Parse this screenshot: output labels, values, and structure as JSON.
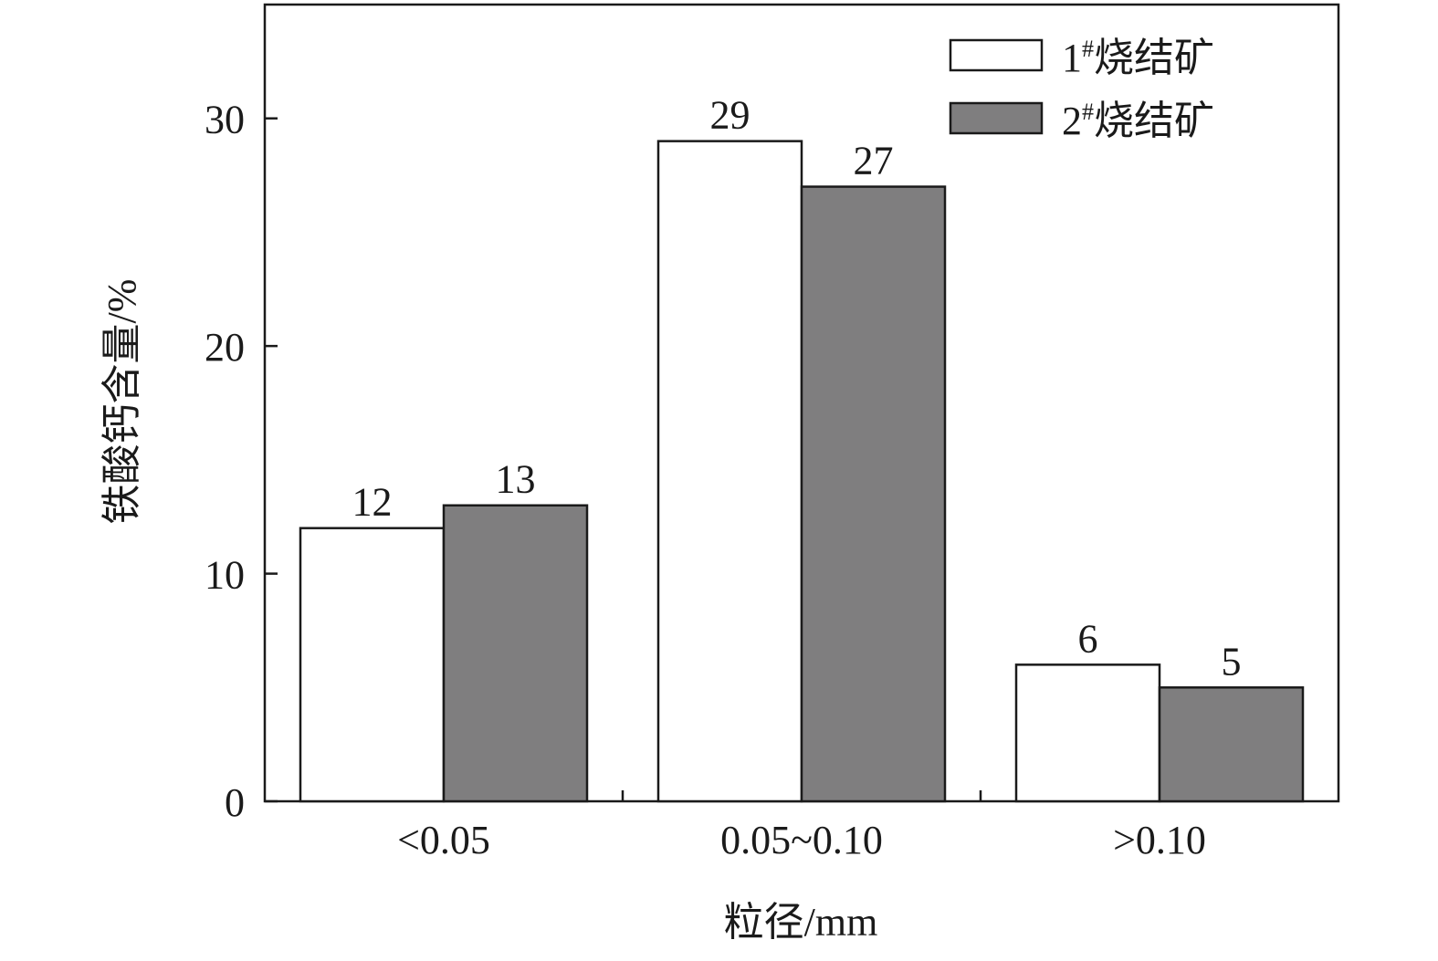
{
  "chart_data": {
    "type": "bar",
    "categories": [
      "<0.05",
      "0.05~0.10",
      ">0.10"
    ],
    "series": [
      {
        "name": "1",
        "name_sup": "#",
        "name_suffix": "烧结矿",
        "values": [
          12,
          29,
          6
        ],
        "color": "#ffffff"
      },
      {
        "name": "2",
        "name_sup": "#",
        "name_suffix": "烧结矿",
        "values": [
          13,
          27,
          5
        ],
        "color": "#7f7e7f"
      }
    ],
    "xlabel": "粒径/mm",
    "ylabel": "铁酸钙含量/%",
    "ylim": [
      0,
      35
    ],
    "yticks": [
      0,
      10,
      20,
      30
    ],
    "grid": false,
    "legend_position": "top-right"
  }
}
